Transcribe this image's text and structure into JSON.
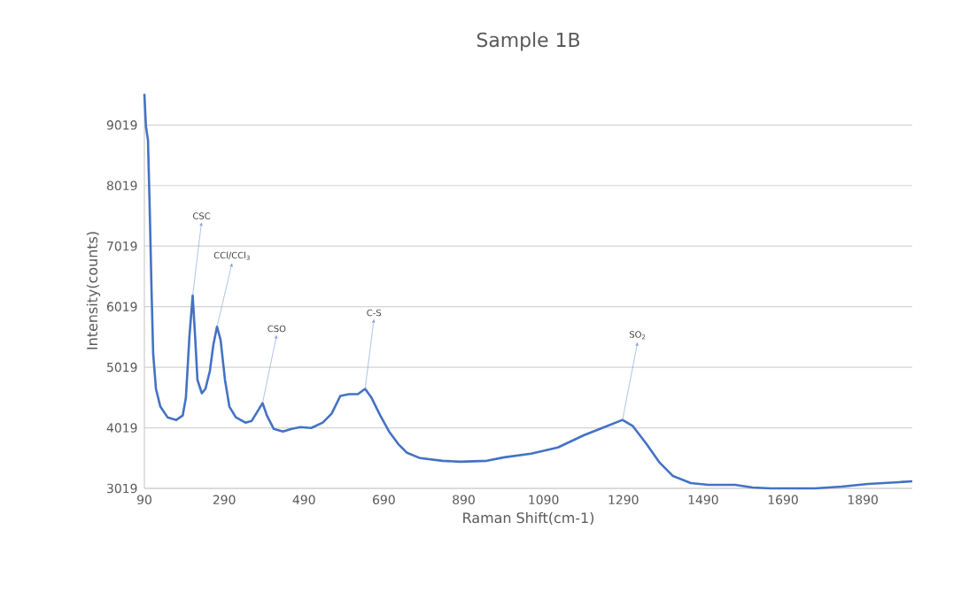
{
  "chart_data": {
    "type": "line",
    "title": "Sample 1B",
    "xlabel": "Raman Shift(cm-1)",
    "ylabel": "Intensity(counts)",
    "xlim": [
      90,
      2014
    ],
    "ylim": [
      3019,
      9550
    ],
    "xticks": [
      90,
      290,
      490,
      690,
      890,
      1090,
      1290,
      1490,
      1690,
      1890
    ],
    "yticks": [
      3019,
      4019,
      5019,
      6019,
      7019,
      8019,
      9019
    ],
    "grid": "y",
    "marker": "none",
    "line_style": "solid",
    "series": [
      {
        "color": "#4472c4",
        "x": [
          90,
          94,
          99,
          103,
          108,
          112,
          119,
          130,
          148,
          170,
          186,
          194,
          203,
          211,
          217,
          223,
          234,
          243,
          254,
          263,
          272,
          281,
          292,
          303,
          319,
          343,
          359,
          374,
          386,
          397,
          414,
          437,
          459,
          481,
          508,
          537,
          559,
          581,
          603,
          625,
          643,
          659,
          681,
          703,
          726,
          748,
          781,
          837,
          881,
          948,
          992,
          1059,
          1126,
          1192,
          1237,
          1288,
          1314,
          1348,
          1381,
          1414,
          1459,
          1503,
          1570,
          1614,
          1659,
          1770,
          1837,
          1903,
          1981,
          2014
        ],
        "values": [
          9532,
          8990,
          8770,
          7743,
          6276,
          5249,
          4662,
          4369,
          4193,
          4149,
          4222,
          4515,
          5542,
          6202,
          5542,
          4809,
          4589,
          4662,
          4955,
          5396,
          5689,
          5469,
          4809,
          4369,
          4193,
          4105,
          4134,
          4296,
          4428,
          4222,
          4002,
          3958,
          4002,
          4031,
          4016,
          4105,
          4251,
          4545,
          4574,
          4574,
          4662,
          4515,
          4222,
          3958,
          3752,
          3606,
          3518,
          3474,
          3459,
          3474,
          3532,
          3591,
          3694,
          3899,
          4016,
          4149,
          4046,
          3752,
          3444,
          3224,
          3107,
          3078,
          3078,
          3034,
          3019,
          3019,
          3048,
          3092,
          3122,
          3136
        ]
      }
    ],
    "annotations": [
      {
        "text": "CSC",
        "x": 211,
        "y": 6202
      },
      {
        "text": "CCl/CCl$_{3}$",
        "x": 272,
        "y": 5689
      },
      {
        "text": "CSO",
        "x": 386,
        "y": 4428
      },
      {
        "text": "C-S",
        "x": 643,
        "y": 4662
      },
      {
        "text": "SO$_{2}$",
        "x": 1288,
        "y": 4149
      }
    ]
  }
}
